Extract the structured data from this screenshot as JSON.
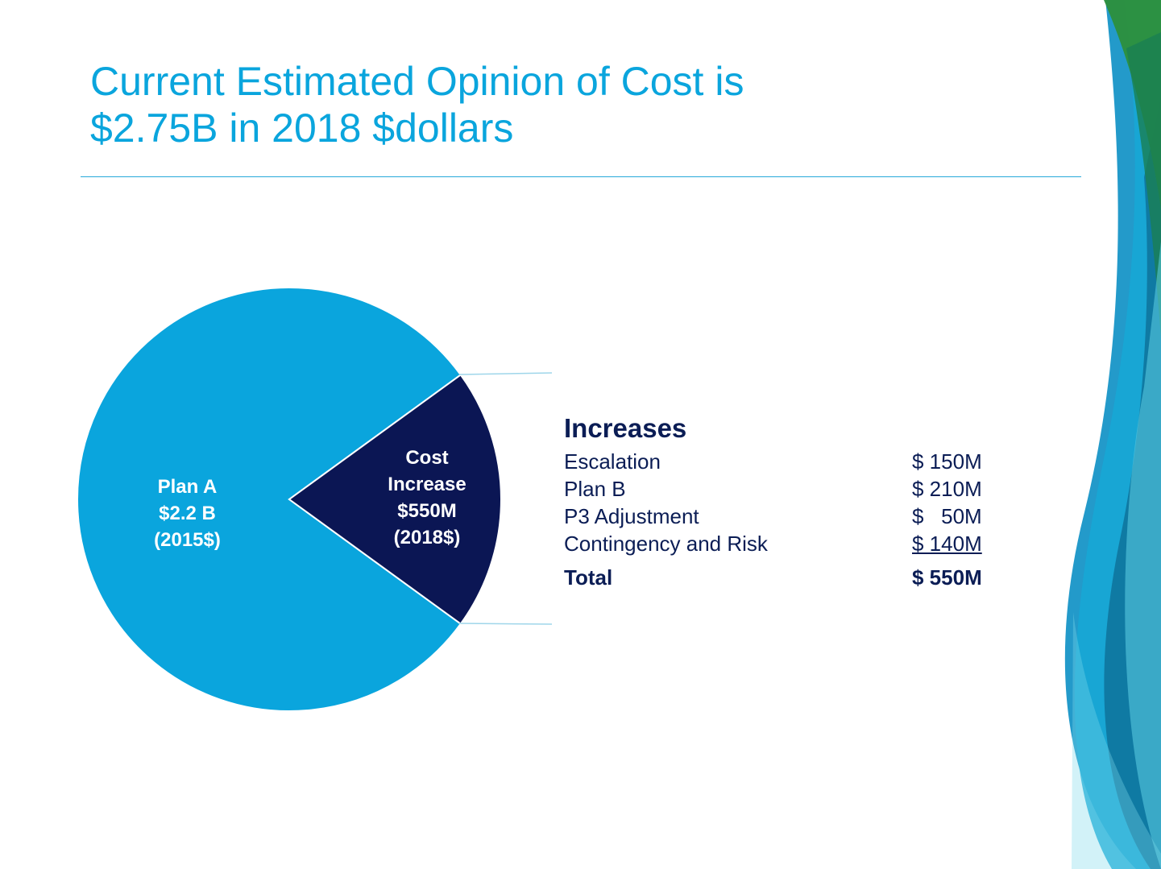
{
  "title": {
    "line1": "Current Estimated Opinion of Cost is",
    "line2": "$2.75B in 2018 $dollars"
  },
  "colors": {
    "title": "#0aa5dd",
    "plan_a_slice": "#0aa5dd",
    "cost_increase_slice": "#0b1654",
    "text_dark": "#0b1d55"
  },
  "chart_data": {
    "type": "pie",
    "slices": [
      {
        "label_lines": [
          "Plan A",
          "$2.2 B",
          "(2015$)"
        ],
        "value": 2200
      },
      {
        "label_lines": [
          "Cost",
          "Increase",
          "$550M",
          "(2018$)"
        ],
        "value": 550
      }
    ]
  },
  "breakdown": {
    "heading": "Increases",
    "items": [
      {
        "label": "Escalation",
        "amount": "$ 150M"
      },
      {
        "label": "Plan B",
        "amount": "$ 210M"
      },
      {
        "label": "P3 Adjustment",
        "amount": "$   50M"
      },
      {
        "label": "Contingency and Risk",
        "amount": "$ 140M"
      }
    ],
    "total": {
      "label": "Total",
      "amount": "$ 550M"
    }
  }
}
